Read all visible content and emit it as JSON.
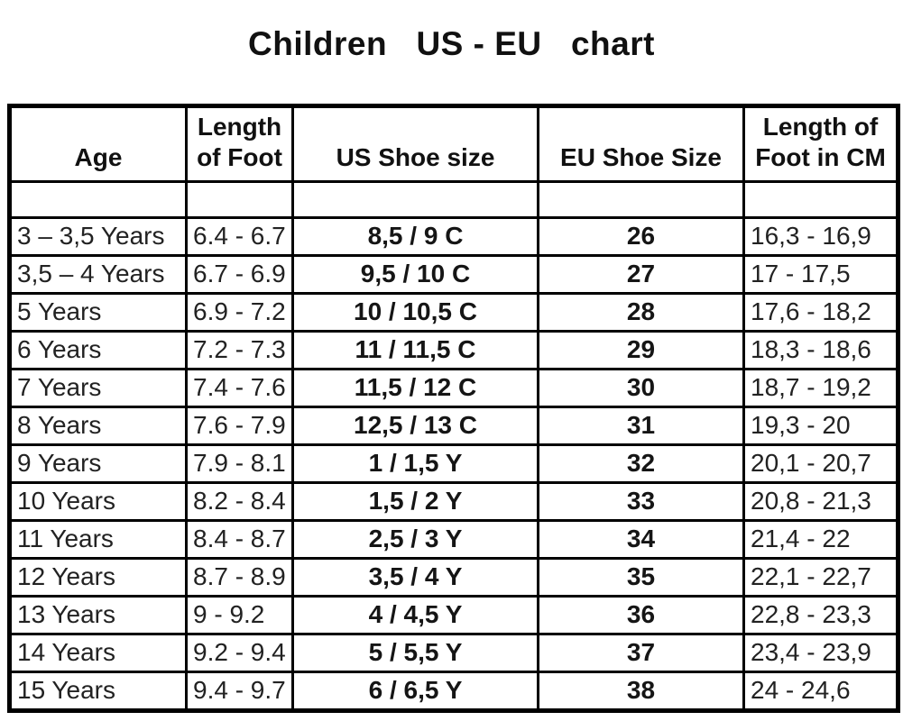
{
  "title": "Children   US - EU   chart",
  "table": {
    "headers": [
      "Age",
      "Length\nof Foot",
      "US Shoe size",
      "EU Shoe Size",
      "Length of\nFoot in CM"
    ],
    "rows": [
      [
        "3 – 3,5 Years",
        "6.4 - 6.7",
        "8,5 / 9 C",
        "26",
        "16,3 - 16,9"
      ],
      [
        "3,5 – 4 Years",
        "6.7 - 6.9",
        "9,5 / 10 C",
        "27",
        "17 - 17,5"
      ],
      [
        "5 Years",
        "6.9 - 7.2",
        "10 / 10,5 C",
        "28",
        "17,6 - 18,2"
      ],
      [
        "6 Years",
        "7.2 - 7.3",
        "11 / 11,5 C",
        "29",
        "18,3 - 18,6"
      ],
      [
        "7 Years",
        "7.4 - 7.6",
        "11,5 / 12 C",
        "30",
        "18,7 - 19,2"
      ],
      [
        "8 Years",
        "7.6 - 7.9",
        "12,5 / 13 C",
        "31",
        "19,3 - 20"
      ],
      [
        "9 Years",
        "7.9 - 8.1",
        "1 / 1,5 Y",
        "32",
        "20,1 - 20,7"
      ],
      [
        "10 Years",
        "8.2 - 8.4",
        "1,5 / 2 Y",
        "33",
        "20,8 - 21,3"
      ],
      [
        "11 Years",
        "8.4 - 8.7",
        "2,5 / 3 Y",
        "34",
        "21,4 - 22"
      ],
      [
        "12 Years",
        "8.7 - 8.9",
        "3,5 / 4 Y",
        "35",
        "22,1 - 22,7"
      ],
      [
        "13 Years",
        "9 - 9.2",
        "4 / 4,5 Y",
        "36",
        "22,8 - 23,3"
      ],
      [
        "14 Years",
        "9.2 - 9.4",
        "5 / 5,5 Y",
        "37",
        "23,4 - 23,9"
      ],
      [
        "15 Years",
        "9.4 - 9.7",
        "6 / 6,5 Y",
        "38",
        "24 - 24,6"
      ]
    ]
  },
  "colors": {
    "text": "#222222",
    "border": "#000000",
    "background": "#ffffff"
  }
}
